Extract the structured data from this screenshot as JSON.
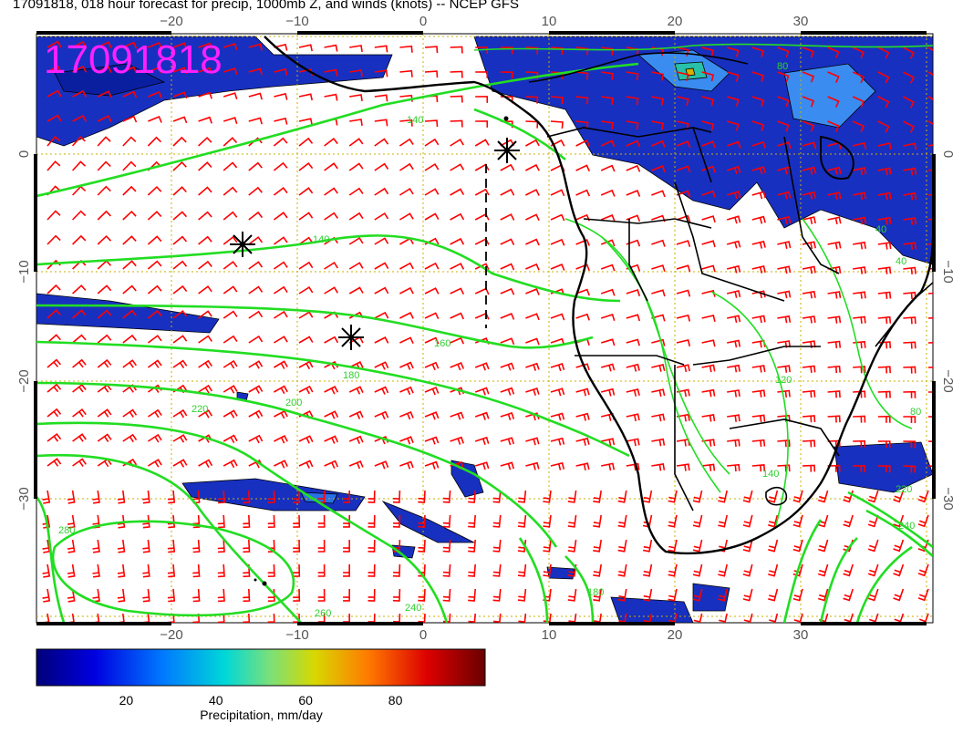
{
  "title": "17091818, 018 hour forecast for precip, 1000mb Z, and winds (knots) -- NCEP GFS",
  "run_label": "17091818",
  "map": {
    "lon_ticks": [
      "−20",
      "−10",
      "0",
      "10",
      "20",
      "30"
    ],
    "lat_ticks": [
      "0",
      "−10",
      "−20",
      "−30"
    ],
    "lon_range": [
      -30.5,
      40
    ],
    "lat_range": [
      -40,
      10
    ],
    "contour_labels": [
      "140",
      "140",
      "160",
      "180",
      "200",
      "220",
      "240",
      "260",
      "280",
      "180",
      "220",
      "240",
      "80",
      "40",
      "40",
      "120",
      "140",
      "80"
    ],
    "markers": [
      "asterisk-1",
      "asterisk-2",
      "asterisk-3"
    ],
    "colors": {
      "wind_barbs": "#ff0000",
      "contours": "#22dd22",
      "coastline": "#000000",
      "grid": "#c9b000",
      "run_label": "#ff20ff"
    }
  },
  "colorbar": {
    "ticks": [
      "20",
      "40",
      "60",
      "80"
    ],
    "tick_values": [
      20,
      40,
      60,
      80
    ],
    "range": [
      0,
      100
    ],
    "label": "Precipitation, mm/day"
  }
}
